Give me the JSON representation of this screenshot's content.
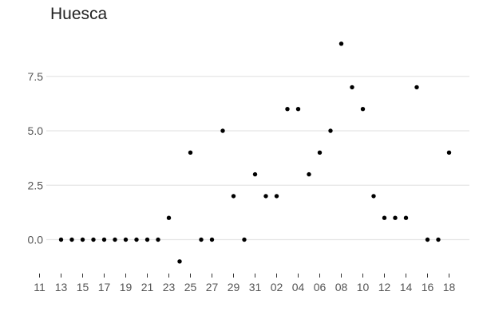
{
  "chart_data": {
    "type": "scatter",
    "title": "Huesca",
    "xlabel": "",
    "ylabel": "",
    "grid": "horizontal",
    "color": "#000000",
    "ylim": [
      -1.45,
      9.25
    ],
    "y_ticks": [
      0.0,
      2.5,
      5.0,
      7.5
    ],
    "y_tick_labels": [
      "0.0",
      "2.5",
      "5.0",
      "7.5"
    ],
    "x_tick_labels": [
      "11",
      "13",
      "15",
      "17",
      "19",
      "21",
      "23",
      "25",
      "27",
      "29",
      "31",
      "02",
      "04",
      "06",
      "08",
      "10",
      "12",
      "14",
      "16",
      "18"
    ],
    "points": [
      {
        "date": "12",
        "value": 0
      },
      {
        "date": "13",
        "value": 0
      },
      {
        "date": "14",
        "value": 0
      },
      {
        "date": "15",
        "value": 0
      },
      {
        "date": "16",
        "value": 0
      },
      {
        "date": "17",
        "value": 0
      },
      {
        "date": "18",
        "value": 0
      },
      {
        "date": "19",
        "value": 0
      },
      {
        "date": "20",
        "value": 0
      },
      {
        "date": "21",
        "value": 0
      },
      {
        "date": "22",
        "value": 1
      },
      {
        "date": "23",
        "value": -1
      },
      {
        "date": "25",
        "value": 4
      },
      {
        "date": "26",
        "value": 0
      },
      {
        "date": "27",
        "value": 0
      },
      {
        "date": "28",
        "value": 5
      },
      {
        "date": "29",
        "value": 2
      },
      {
        "date": "30",
        "value": 0
      },
      {
        "date": "31",
        "value": 3
      },
      {
        "date": "01",
        "value": 2
      },
      {
        "date": "02",
        "value": 2
      },
      {
        "date": "03",
        "value": 6
      },
      {
        "date": "04",
        "value": 6
      },
      {
        "date": "05",
        "value": 3
      },
      {
        "date": "06",
        "value": 4
      },
      {
        "date": "07",
        "value": 5
      },
      {
        "date": "08",
        "value": 9
      },
      {
        "date": "09",
        "value": 7
      },
      {
        "date": "10",
        "value": 6
      },
      {
        "date": "11",
        "value": 2
      },
      {
        "date": "12",
        "value": 1
      },
      {
        "date": "13",
        "value": 1
      },
      {
        "date": "14",
        "value": 1
      },
      {
        "date": "15",
        "value": 7
      },
      {
        "date": "16",
        "value": 0
      },
      {
        "date": "17",
        "value": 0
      },
      {
        "date": "18",
        "value": 4
      }
    ]
  }
}
